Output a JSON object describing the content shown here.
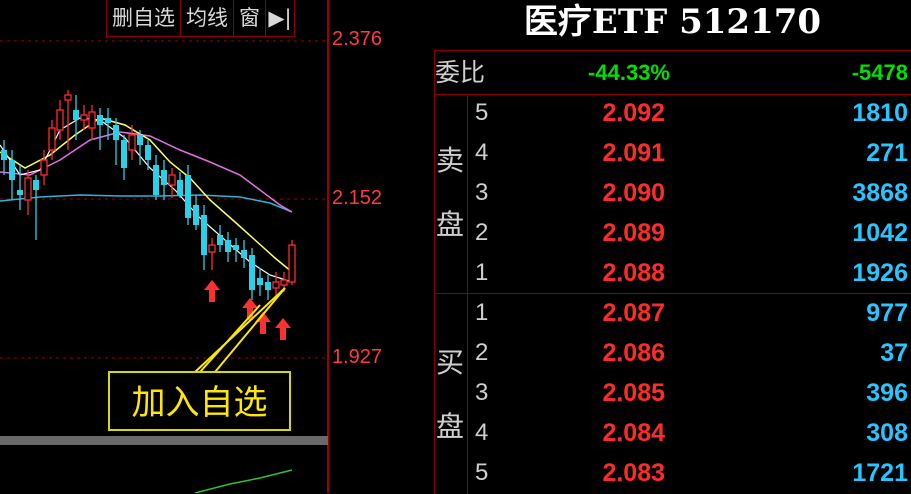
{
  "toolbar": {
    "delete_label": "删自选",
    "ma_label": "均线",
    "window_label": "窗",
    "arrow_glyph": "▶|"
  },
  "axis": {
    "top": "2.376",
    "mid": "2.152",
    "bottom": "1.927"
  },
  "callout": {
    "text": "加入自选"
  },
  "title": "医疗ETF 512170",
  "webi": {
    "label": "委比",
    "percent": "-44.33%",
    "diff": "-5478"
  },
  "sell_label": [
    "卖",
    "盘"
  ],
  "buy_label": [
    "买",
    "盘"
  ],
  "sell": [
    {
      "level": "5",
      "price": "2.092",
      "volume": "1810"
    },
    {
      "level": "4",
      "price": "2.091",
      "volume": "271"
    },
    {
      "level": "3",
      "price": "2.090",
      "volume": "3868"
    },
    {
      "level": "2",
      "price": "2.089",
      "volume": "1042"
    },
    {
      "level": "1",
      "price": "2.088",
      "volume": "1926"
    }
  ],
  "buy": [
    {
      "level": "1",
      "price": "2.087",
      "volume": "977"
    },
    {
      "level": "2",
      "price": "2.086",
      "volume": "37"
    },
    {
      "level": "3",
      "price": "2.085",
      "volume": "396"
    },
    {
      "level": "4",
      "price": "2.084",
      "volume": "308"
    },
    {
      "level": "5",
      "price": "2.083",
      "volume": "1721"
    }
  ],
  "colors": {
    "up": "#ff2b2b",
    "down": "#29d0e8",
    "ma5": "#ffffff",
    "ma10": "#ffff66",
    "ma20": "#e070e0",
    "ma60": "#29b5d8"
  }
}
